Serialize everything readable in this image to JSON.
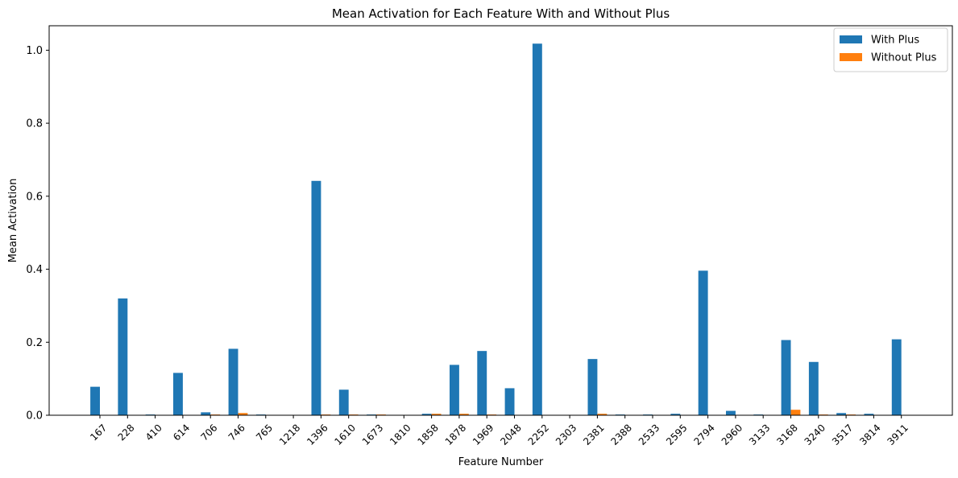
{
  "chart_data": {
    "type": "bar",
    "title": "Mean Activation for Each Feature With and Without Plus",
    "xlabel": "Feature Number",
    "ylabel": "Mean Activation",
    "ylim": [
      0,
      1.067
    ],
    "yticks": [
      "0.0",
      "0.2",
      "0.4",
      "0.6",
      "0.8",
      "1.0"
    ],
    "ytick_values": [
      0,
      0.2,
      0.4,
      0.6,
      0.8,
      1.0
    ],
    "grid": false,
    "legend_position": "top-right",
    "categories": [
      "167",
      "228",
      "410",
      "614",
      "706",
      "746",
      "765",
      "1218",
      "1396",
      "1610",
      "1673",
      "1810",
      "1858",
      "1878",
      "1969",
      "2048",
      "2252",
      "2303",
      "2381",
      "2388",
      "2533",
      "2595",
      "2794",
      "2960",
      "3133",
      "3168",
      "3240",
      "3517",
      "3814",
      "3911"
    ],
    "series": [
      {
        "name": "With Plus",
        "color": "#1f77b4",
        "values": [
          0.078,
          0.32,
          0.002,
          0.116,
          0.008,
          0.182,
          0.002,
          0.0,
          0.642,
          0.07,
          0.002,
          0.0,
          0.004,
          0.138,
          0.176,
          0.074,
          1.018,
          0.0,
          0.154,
          0.002,
          0.002,
          0.004,
          0.396,
          0.012,
          0.002,
          0.206,
          0.146,
          0.006,
          0.004,
          0.208
        ]
      },
      {
        "name": "Without Plus",
        "color": "#ff7f0e",
        "values": [
          0.0,
          0.0,
          0.0,
          0.0,
          0.002,
          0.006,
          0.0,
          0.0,
          0.002,
          0.002,
          0.002,
          0.0,
          0.004,
          0.004,
          0.002,
          0.0,
          0.0,
          0.0,
          0.004,
          0.0,
          0.0,
          0.0,
          0.0,
          0.0,
          0.0,
          0.015,
          0.002,
          0.002,
          0.0,
          0.0
        ]
      }
    ]
  }
}
